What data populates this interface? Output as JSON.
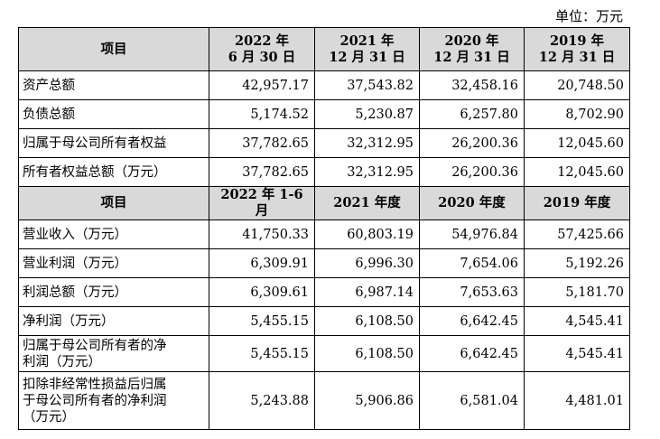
{
  "unit_label": "单位：万元",
  "balance_header": {
    "item": "项目",
    "periods": [
      {
        "line1": "2022 年",
        "line2": "6 月 30 日"
      },
      {
        "line1": "2021 年",
        "line2": "12 月 31 日"
      },
      {
        "line1": "2020 年",
        "line2": "12 月 31 日"
      },
      {
        "line1": "2019 年",
        "line2": "12 月 31 日"
      }
    ]
  },
  "balance_rows": [
    {
      "label": "资产总额",
      "values": [
        "42,957.17",
        "37,543.82",
        "32,458.16",
        "20,748.50"
      ]
    },
    {
      "label": "负债总额",
      "values": [
        "5,174.52",
        "5,230.87",
        "6,257.80",
        "8,702.90"
      ]
    },
    {
      "label": "归属于母公司所有者权益",
      "values": [
        "37,782.65",
        "32,312.95",
        "26,200.36",
        "12,045.60"
      ]
    },
    {
      "label": "所有者权益总额（万元）",
      "values": [
        "37,782.65",
        "32,312.95",
        "26,200.36",
        "12,045.60"
      ]
    }
  ],
  "income_header": {
    "item": "项目",
    "periods": [
      "2022 年 1-6 月",
      "2021 年度",
      "2020 年度",
      "2019 年度"
    ]
  },
  "income_rows": [
    {
      "label": "营业收入（万元）",
      "values": [
        "41,750.33",
        "60,803.19",
        "54,976.84",
        "57,425.66"
      ]
    },
    {
      "label": "营业利润（万元）",
      "values": [
        "6,309.91",
        "6,996.30",
        "7,654.06",
        "5,192.26"
      ]
    },
    {
      "label": "利润总额（万元）",
      "values": [
        "6,309.61",
        "6,987.14",
        "7,653.63",
        "5,181.70"
      ]
    },
    {
      "label": "净利润（万元）",
      "values": [
        "5,455.15",
        "6,108.50",
        "6,642.45",
        "4,545.41"
      ]
    },
    {
      "label_lines": [
        "归属于母公司所有者的净",
        "利润（万元）"
      ],
      "values": [
        "5,455.15",
        "6,108.50",
        "6,642.45",
        "4,545.41"
      ]
    },
    {
      "label_lines": [
        "扣除非经常性损益后归属",
        "于母公司所有者的净利润",
        "（万元）"
      ],
      "values": [
        "5,243.88",
        "5,906.86",
        "6,581.04",
        "4,481.01"
      ]
    }
  ]
}
